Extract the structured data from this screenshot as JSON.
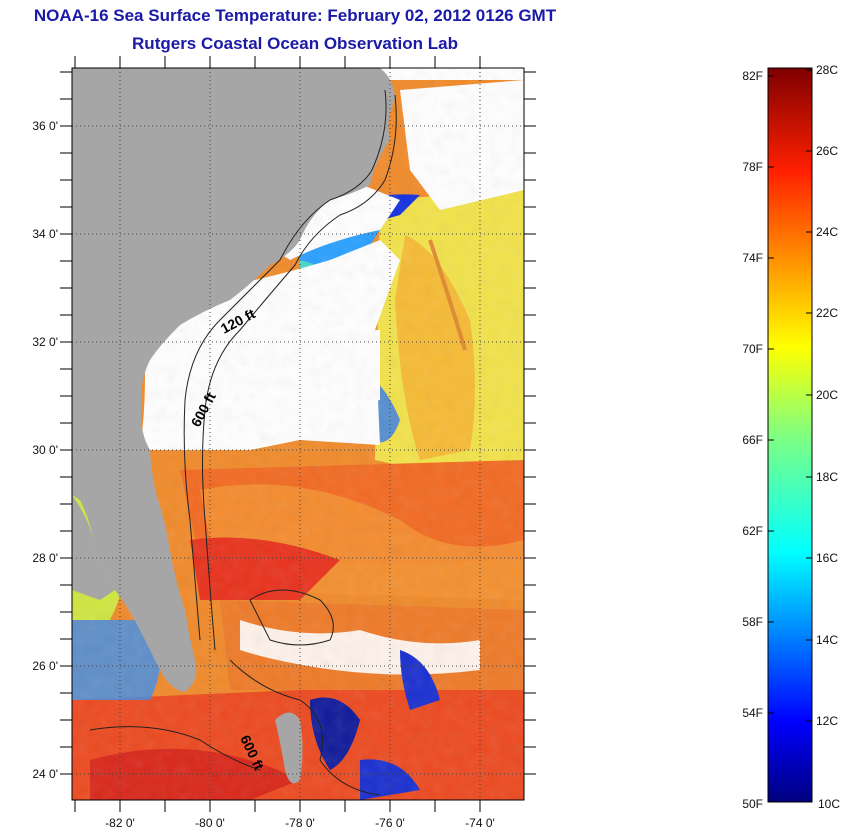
{
  "title": "NOAA-16 Sea Surface Temperature:  February 02, 2012 0126 GMT",
  "subtitle": "Rutgers Coastal Ocean Observation Lab",
  "map": {
    "lat_labels": [
      "36 0'",
      "34 0'",
      "32 0'",
      "30 0'",
      "28 0'",
      "26 0'",
      "24 0'"
    ],
    "lon_labels": [
      "-82 0'",
      "-80 0'",
      "-78 0'",
      "-76 0'",
      "-74 0'"
    ],
    "contour_labels": [
      "120 ft",
      "600 ft",
      "600 ft"
    ],
    "land_color": "#a6a6a6",
    "cloud_color": "#ffffff"
  },
  "colorbar": {
    "fahrenheit_labels": [
      "82F",
      "78F",
      "74F",
      "70F",
      "66F",
      "62F",
      "58F",
      "54F",
      "50F"
    ],
    "celsius_labels": [
      "28C",
      "26C",
      "24C",
      "22C",
      "20C",
      "18C",
      "16C",
      "14C",
      "12C",
      "10C"
    ],
    "min_c": 10,
    "max_c": 28,
    "min_f": 50,
    "max_f": 82
  }
}
